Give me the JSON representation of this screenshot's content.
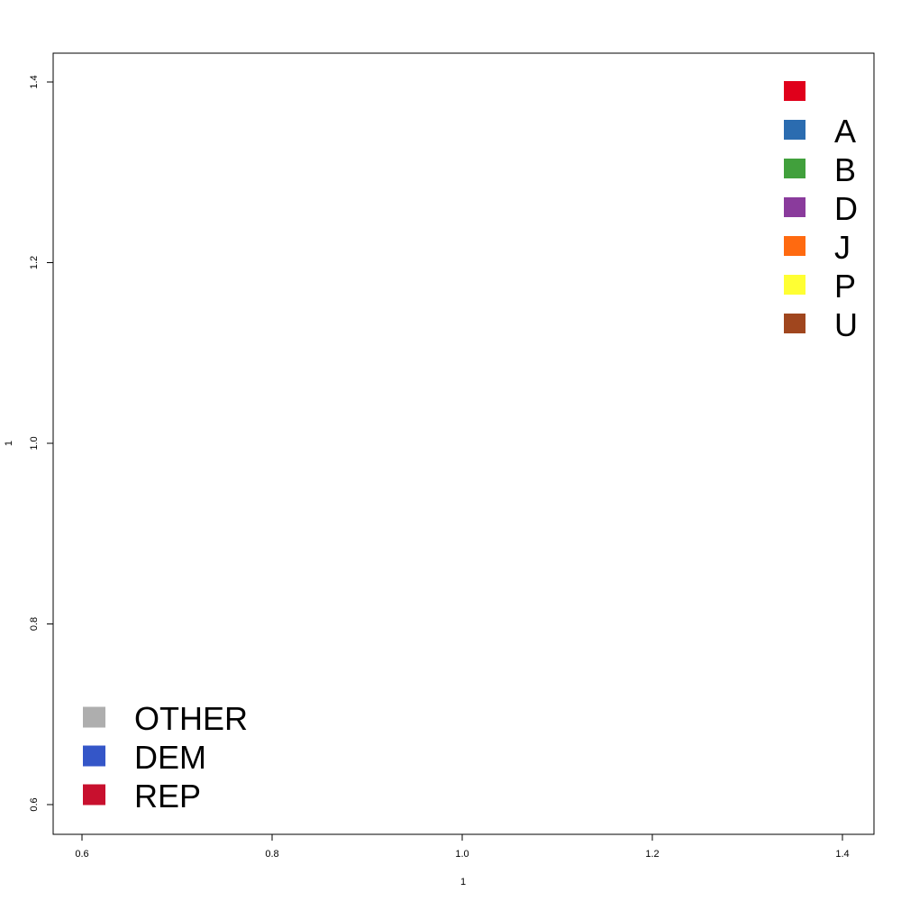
{
  "chart_data": {
    "type": "scatter",
    "title": "",
    "xlabel": "1",
    "ylabel": "1",
    "xlim": [
      0.6,
      1.4
    ],
    "ylim": [
      0.6,
      1.4
    ],
    "xticks": [
      "0.6",
      "0.8",
      "1.0",
      "1.2",
      "1.4"
    ],
    "yticks": [
      "0.6",
      "0.8",
      "1.0",
      "1.2",
      "1.4"
    ],
    "grid": false,
    "series": [],
    "legends": [
      {
        "placement": "top-right",
        "entries": [
          {
            "label": "",
            "color": "#e0001b"
          },
          {
            "label": "A",
            "color": "#2b6cb0"
          },
          {
            "label": "B",
            "color": "#41a03c"
          },
          {
            "label": "D",
            "color": "#8a3b9c"
          },
          {
            "label": "J",
            "color": "#ff6a10"
          },
          {
            "label": "P",
            "color": "#ffff33"
          },
          {
            "label": "U",
            "color": "#a0461e"
          }
        ]
      },
      {
        "placement": "bottom-left",
        "entries": [
          {
            "label": "OTHER",
            "color": "#aeaeae"
          },
          {
            "label": "DEM",
            "color": "#3456c8"
          },
          {
            "label": "REP",
            "color": "#c8102e"
          }
        ]
      }
    ]
  }
}
